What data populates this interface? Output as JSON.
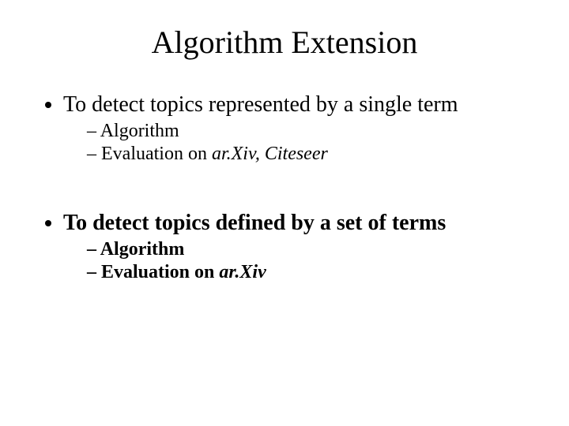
{
  "slide": {
    "title": "Algorithm Extension",
    "bullets": [
      {
        "text": "To detect topics represented by a single term",
        "bold": false,
        "sub": [
          {
            "text": "Algorithm",
            "bold": false,
            "italic_part": null
          },
          {
            "text": "Evaluation on ",
            "bold": false,
            "italic_part": "ar.Xiv, Citeseer"
          }
        ]
      },
      {
        "text": "To detect topics defined by a set of terms",
        "bold": true,
        "sub": [
          {
            "text": "Algorithm",
            "bold": true,
            "italic_part": null
          },
          {
            "text": "Evaluation on ",
            "bold": true,
            "italic_part": "ar.Xiv"
          }
        ]
      }
    ]
  },
  "style": {
    "background_color": "#ffffff",
    "text_color": "#000000",
    "font_family": "Times New Roman",
    "title_fontsize": 40,
    "bullet_fontsize": 28,
    "subbullet_fontsize": 24,
    "slide_width": 720,
    "slide_height": 540
  }
}
